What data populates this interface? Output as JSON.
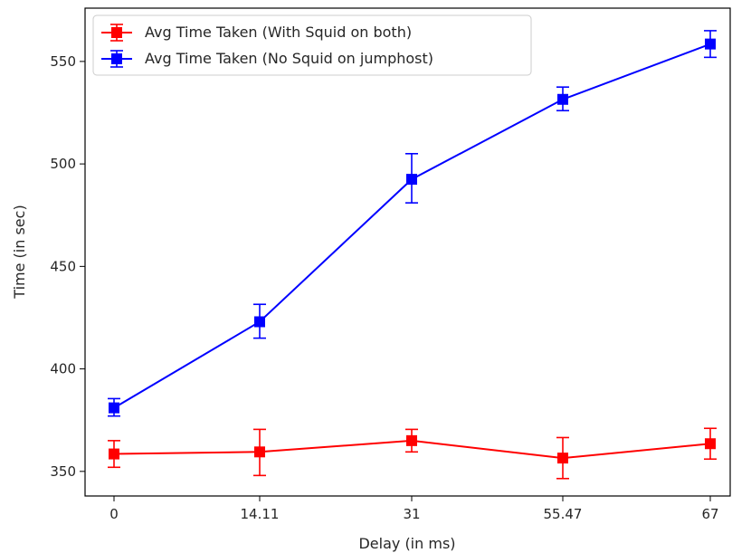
{
  "chart_data": {
    "type": "line",
    "categories": [
      "0",
      "14.11",
      "31",
      "55.47",
      "67"
    ],
    "xlabel": "Delay (in ms)",
    "ylabel": "Time (in sec)",
    "ylim": [
      338,
      576
    ],
    "yticks": [
      350,
      400,
      450,
      500,
      550
    ],
    "grid": false,
    "legend_position": "top-left",
    "series": [
      {
        "name": "Avg Time Taken (With Squid on both)",
        "color": "#ff0000",
        "values": [
          358.5,
          359.5,
          365,
          356.5,
          363.5
        ],
        "err_low": [
          352,
          348,
          359.5,
          346.5,
          356
        ],
        "err_high": [
          365,
          370.5,
          370.5,
          366.5,
          371
        ]
      },
      {
        "name": "Avg Time Taken (No Squid on jumphost)",
        "color": "#0000ff",
        "values": [
          381,
          423,
          492.5,
          531.5,
          558.5
        ],
        "err_low": [
          377,
          415,
          481,
          526,
          552
        ],
        "err_high": [
          385.5,
          431.5,
          505,
          537.5,
          565
        ]
      }
    ]
  }
}
